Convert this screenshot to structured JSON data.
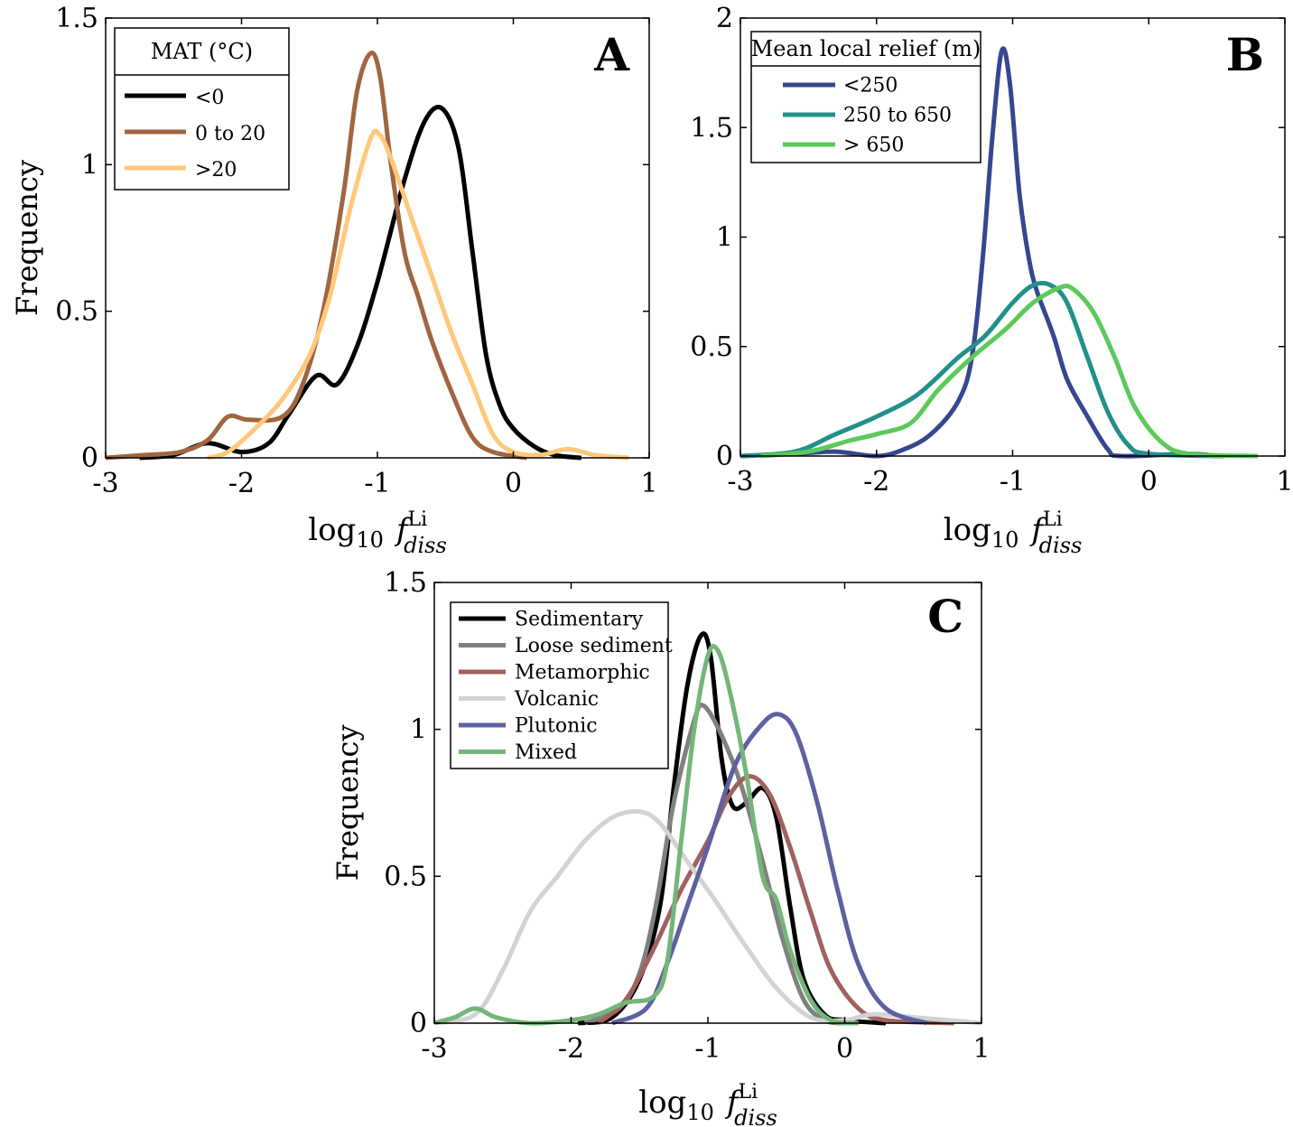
{
  "chart_data": [
    {
      "type": "line",
      "panel": "A",
      "xlabel": {
        "base": "log",
        "base_sub": "10",
        "var": "f",
        "sup": "Li",
        "sub": "diss"
      },
      "ylabel": "Frequency",
      "xlim": [
        -3,
        1
      ],
      "ylim": [
        0,
        1.5
      ],
      "xticks": [
        -3,
        -2,
        -1,
        0,
        1
      ],
      "xtick_labels": [
        "-3",
        "-2",
        "-1",
        "0",
        "1"
      ],
      "yticks": [
        0,
        0.5,
        1,
        1.5
      ],
      "ytick_labels": [
        "0",
        "0.5",
        "1",
        "1.5"
      ],
      "legend_title": "MAT (°C)",
      "legend_placement": "top-left",
      "series": [
        {
          "name": "<0",
          "color": "#000000",
          "points": [
            [
              -2.75,
              0
            ],
            [
              -2.5,
              0.01
            ],
            [
              -2.25,
              0.05
            ],
            [
              -2.0,
              0.02
            ],
            [
              -1.8,
              0.05
            ],
            [
              -1.65,
              0.15
            ],
            [
              -1.45,
              0.28
            ],
            [
              -1.3,
              0.25
            ],
            [
              -1.15,
              0.38
            ],
            [
              -1.0,
              0.6
            ],
            [
              -0.8,
              0.95
            ],
            [
              -0.65,
              1.15
            ],
            [
              -0.52,
              1.19
            ],
            [
              -0.4,
              1.05
            ],
            [
              -0.3,
              0.7
            ],
            [
              -0.2,
              0.35
            ],
            [
              -0.1,
              0.18
            ],
            [
              0,
              0.1
            ],
            [
              0.15,
              0.04
            ],
            [
              0.3,
              0.01
            ],
            [
              0.5,
              0
            ]
          ]
        },
        {
          "name": "0 to 20",
          "color": "#a0663f",
          "points": [
            [
              -3,
              0
            ],
            [
              -2.7,
              0.01
            ],
            [
              -2.45,
              0.02
            ],
            [
              -2.25,
              0.06
            ],
            [
              -2.1,
              0.14
            ],
            [
              -1.95,
              0.13
            ],
            [
              -1.7,
              0.14
            ],
            [
              -1.55,
              0.25
            ],
            [
              -1.4,
              0.5
            ],
            [
              -1.25,
              0.9
            ],
            [
              -1.15,
              1.25
            ],
            [
              -1.05,
              1.38
            ],
            [
              -0.98,
              1.3
            ],
            [
              -0.9,
              1.0
            ],
            [
              -0.8,
              0.7
            ],
            [
              -0.7,
              0.55
            ],
            [
              -0.6,
              0.4
            ],
            [
              -0.45,
              0.22
            ],
            [
              -0.3,
              0.07
            ],
            [
              -0.15,
              0.02
            ],
            [
              0.1,
              0
            ]
          ]
        },
        {
          "name": ">20",
          "color": "#ffc87a",
          "points": [
            [
              -2.25,
              0
            ],
            [
              -2.1,
              0.02
            ],
            [
              -1.9,
              0.1
            ],
            [
              -1.7,
              0.2
            ],
            [
              -1.5,
              0.35
            ],
            [
              -1.35,
              0.55
            ],
            [
              -1.2,
              0.85
            ],
            [
              -1.05,
              1.09
            ],
            [
              -0.98,
              1.1
            ],
            [
              -0.9,
              1.02
            ],
            [
              -0.75,
              0.82
            ],
            [
              -0.6,
              0.62
            ],
            [
              -0.45,
              0.42
            ],
            [
              -0.3,
              0.25
            ],
            [
              -0.15,
              0.08
            ],
            [
              0,
              0.02
            ],
            [
              0.2,
              0.01
            ],
            [
              0.4,
              0.03
            ],
            [
              0.6,
              0.01
            ],
            [
              0.85,
              0
            ]
          ]
        }
      ]
    },
    {
      "type": "line",
      "panel": "B",
      "xlabel": {
        "base": "log",
        "base_sub": "10",
        "var": "f",
        "sup": "Li",
        "sub": "diss"
      },
      "ylabel": "",
      "xlim": [
        -3,
        1
      ],
      "ylim": [
        0,
        2
      ],
      "xticks": [
        -3,
        -2,
        -1,
        0,
        1
      ],
      "xtick_labels": [
        "-3",
        "-2",
        "-1",
        "0",
        "1"
      ],
      "yticks": [
        0,
        0.5,
        1,
        1.5,
        2
      ],
      "ytick_labels": [
        "0",
        "0.5",
        "1",
        "1.5",
        "2"
      ],
      "legend_title": "Mean local relief (m)",
      "legend_placement": "top-left",
      "series": [
        {
          "name": "<250",
          "color": "#37478f",
          "points": [
            [
              -3,
              0
            ],
            [
              -2.6,
              0.01
            ],
            [
              -2.3,
              0.02
            ],
            [
              -2.0,
              0
            ],
            [
              -1.8,
              0.03
            ],
            [
              -1.6,
              0.1
            ],
            [
              -1.4,
              0.25
            ],
            [
              -1.3,
              0.45
            ],
            [
              -1.22,
              0.9
            ],
            [
              -1.15,
              1.45
            ],
            [
              -1.08,
              1.85
            ],
            [
              -1.02,
              1.7
            ],
            [
              -0.95,
              1.2
            ],
            [
              -0.88,
              0.9
            ],
            [
              -0.82,
              0.75
            ],
            [
              -0.7,
              0.55
            ],
            [
              -0.6,
              0.35
            ],
            [
              -0.45,
              0.18
            ],
            [
              -0.3,
              0.03
            ],
            [
              -0.2,
              0
            ],
            [
              0.3,
              0.01
            ],
            [
              0.5,
              0
            ]
          ]
        },
        {
          "name": "250 to 650",
          "color": "#22908a",
          "points": [
            [
              -3,
              0
            ],
            [
              -2.6,
              0.02
            ],
            [
              -2.3,
              0.1
            ],
            [
              -2,
              0.18
            ],
            [
              -1.7,
              0.28
            ],
            [
              -1.4,
              0.45
            ],
            [
              -1.2,
              0.55
            ],
            [
              -1.0,
              0.7
            ],
            [
              -0.85,
              0.78
            ],
            [
              -0.72,
              0.78
            ],
            [
              -0.6,
              0.7
            ],
            [
              -0.45,
              0.45
            ],
            [
              -0.3,
              0.2
            ],
            [
              -0.15,
              0.05
            ],
            [
              0,
              0.01
            ],
            [
              0.55,
              0
            ]
          ]
        },
        {
          "name": "> 650",
          "color": "#5cc95a",
          "points": [
            [
              -2.85,
              0
            ],
            [
              -2.5,
              0.02
            ],
            [
              -2.2,
              0.07
            ],
            [
              -2.0,
              0.1
            ],
            [
              -1.75,
              0.15
            ],
            [
              -1.55,
              0.3
            ],
            [
              -1.3,
              0.45
            ],
            [
              -1.05,
              0.58
            ],
            [
              -0.85,
              0.7
            ],
            [
              -0.65,
              0.77
            ],
            [
              -0.55,
              0.76
            ],
            [
              -0.4,
              0.65
            ],
            [
              -0.25,
              0.45
            ],
            [
              -0.1,
              0.22
            ],
            [
              0.1,
              0.06
            ],
            [
              0.3,
              0.01
            ],
            [
              0.8,
              0
            ]
          ]
        }
      ]
    },
    {
      "type": "line",
      "panel": "C",
      "xlabel": {
        "base": "log",
        "base_sub": "10",
        "var": "f",
        "sup": "Li",
        "sub": "diss"
      },
      "ylabel": "Frequency",
      "xlim": [
        -3,
        1
      ],
      "ylim": [
        0,
        1.5
      ],
      "xticks": [
        -3,
        -2,
        -1,
        0,
        1
      ],
      "xtick_labels": [
        "-3",
        "-2",
        "-1",
        "0",
        "1"
      ],
      "yticks": [
        0,
        0.5,
        1,
        1.5
      ],
      "ytick_labels": [
        "0",
        "0.5",
        "1",
        "1.5"
      ],
      "legend_title": "",
      "legend_placement": "top-left",
      "series": [
        {
          "name": "Sedimentary",
          "color": "#000000",
          "points": [
            [
              -1.95,
              0
            ],
            [
              -1.7,
              0.02
            ],
            [
              -1.5,
              0.15
            ],
            [
              -1.35,
              0.4
            ],
            [
              -1.25,
              0.8
            ],
            [
              -1.15,
              1.15
            ],
            [
              -1.05,
              1.32
            ],
            [
              -0.98,
              1.25
            ],
            [
              -0.9,
              0.9
            ],
            [
              -0.82,
              0.74
            ],
            [
              -0.72,
              0.75
            ],
            [
              -0.6,
              0.8
            ],
            [
              -0.5,
              0.7
            ],
            [
              -0.4,
              0.4
            ],
            [
              -0.3,
              0.15
            ],
            [
              -0.15,
              0.03
            ],
            [
              0,
              0.01
            ],
            [
              0.3,
              0
            ]
          ]
        },
        {
          "name": "Loose sediment",
          "color": "#808080",
          "points": [
            [
              -1.9,
              0
            ],
            [
              -1.65,
              0.05
            ],
            [
              -1.5,
              0.17
            ],
            [
              -1.38,
              0.4
            ],
            [
              -1.25,
              0.75
            ],
            [
              -1.1,
              1.03
            ],
            [
              -1.03,
              1.08
            ],
            [
              -0.9,
              0.98
            ],
            [
              -0.75,
              0.8
            ],
            [
              -0.6,
              0.55
            ],
            [
              -0.45,
              0.28
            ],
            [
              -0.3,
              0.08
            ],
            [
              -0.15,
              0.01
            ],
            [
              0,
              0
            ]
          ]
        },
        {
          "name": "Metamorphic",
          "color": "#a0615f",
          "points": [
            [
              -1.8,
              0
            ],
            [
              -1.6,
              0.08
            ],
            [
              -1.4,
              0.25
            ],
            [
              -1.2,
              0.45
            ],
            [
              -1.0,
              0.62
            ],
            [
              -0.85,
              0.77
            ],
            [
              -0.7,
              0.84
            ],
            [
              -0.55,
              0.78
            ],
            [
              -0.4,
              0.6
            ],
            [
              -0.25,
              0.38
            ],
            [
              -0.1,
              0.18
            ],
            [
              0.1,
              0.05
            ],
            [
              0.3,
              0.01
            ],
            [
              0.8,
              0
            ]
          ]
        },
        {
          "name": "Volcanic",
          "color": "#d3d3d3",
          "points": [
            [
              -3,
              0
            ],
            [
              -2.7,
              0.03
            ],
            [
              -2.5,
              0.18
            ],
            [
              -2.3,
              0.38
            ],
            [
              -2.1,
              0.5
            ],
            [
              -1.9,
              0.62
            ],
            [
              -1.7,
              0.7
            ],
            [
              -1.5,
              0.72
            ],
            [
              -1.35,
              0.68
            ],
            [
              -1.15,
              0.55
            ],
            [
              -0.95,
              0.42
            ],
            [
              -0.75,
              0.28
            ],
            [
              -0.5,
              0.12
            ],
            [
              -0.25,
              0.02
            ],
            [
              0,
              0.01
            ],
            [
              0.2,
              0.03
            ],
            [
              0.5,
              0.02
            ],
            [
              1.0,
              0
            ]
          ]
        },
        {
          "name": "Plutonic",
          "color": "#5e61a0",
          "points": [
            [
              -1.7,
              0
            ],
            [
              -1.45,
              0.05
            ],
            [
              -1.3,
              0.2
            ],
            [
              -1.15,
              0.4
            ],
            [
              -1.0,
              0.6
            ],
            [
              -0.8,
              0.88
            ],
            [
              -0.6,
              1.02
            ],
            [
              -0.47,
              1.05
            ],
            [
              -0.35,
              0.98
            ],
            [
              -0.2,
              0.75
            ],
            [
              -0.05,
              0.45
            ],
            [
              0.1,
              0.2
            ],
            [
              0.3,
              0.05
            ],
            [
              0.6,
              0
            ]
          ]
        },
        {
          "name": "Mixed",
          "color": "#75b57a",
          "points": [
            [
              -3,
              0
            ],
            [
              -2.85,
              0.02
            ],
            [
              -2.7,
              0.05
            ],
            [
              -2.55,
              0.02
            ],
            [
              -2.3,
              0
            ],
            [
              -2.0,
              0.01
            ],
            [
              -1.8,
              0.03
            ],
            [
              -1.6,
              0.07
            ],
            [
              -1.4,
              0.09
            ],
            [
              -1.3,
              0.2
            ],
            [
              -1.2,
              0.6
            ],
            [
              -1.1,
              1.0
            ],
            [
              -1.0,
              1.25
            ],
            [
              -0.93,
              1.27
            ],
            [
              -0.85,
              1.15
            ],
            [
              -0.72,
              0.85
            ],
            [
              -0.6,
              0.5
            ],
            [
              -0.5,
              0.42
            ],
            [
              -0.4,
              0.25
            ],
            [
              -0.25,
              0.08
            ],
            [
              -0.1,
              0.01
            ],
            [
              0.1,
              0
            ]
          ]
        }
      ]
    }
  ]
}
